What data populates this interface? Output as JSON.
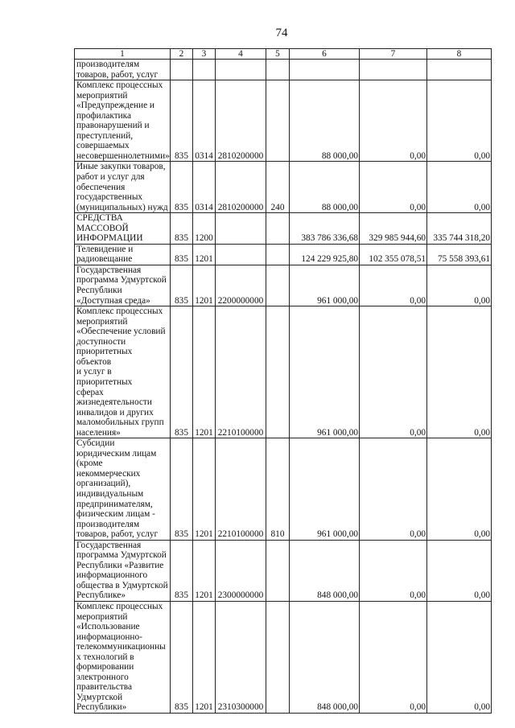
{
  "page_number": "74",
  "columns": [
    "1",
    "2",
    "3",
    "4",
    "5",
    "6",
    "7",
    "8"
  ],
  "rows": [
    {
      "name": "производителям\nтоваров, работ, услуг",
      "c2": "",
      "c3": "",
      "c4": "",
      "c5": "",
      "c6": "",
      "c7": "",
      "c8": ""
    },
    {
      "name": "Комплекс процессных\nмероприятий\n«Предупреждение и\nпрофилактика\nправонарушений и\nпреступлений,\nсовершаемых\nнесовершеннолетними»",
      "c2": "835",
      "c3": "0314",
      "c4": "2810200000",
      "c5": "",
      "c6": "88 000,00",
      "c7": "0,00",
      "c8": "0,00"
    },
    {
      "name": "Иные закупки товаров,\nработ и услуг для\nобеспечения\nгосударственных\n(муниципальных) нужд",
      "c2": "835",
      "c3": "0314",
      "c4": "2810200000",
      "c5": "240",
      "c6": "88 000,00",
      "c7": "0,00",
      "c8": "0,00"
    },
    {
      "name": "СРЕДСТВА\nМАССОВОЙ\nИНФОРМАЦИИ",
      "c2": "835",
      "c3": "1200",
      "c4": "",
      "c5": "",
      "c6": "383 786 336,68",
      "c7": "329 985 944,60",
      "c8": "335 744 318,20"
    },
    {
      "name": "Телевидение и\nрадиовещание",
      "c2": "835",
      "c3": "1201",
      "c4": "",
      "c5": "",
      "c6": "124 229 925,80",
      "c7": "102 355 078,51",
      "c8": "75 558 393,61"
    },
    {
      "name": "Государственная\nпрограмма Удмуртской\nРеспублики\n«Доступная среда»",
      "c2": "835",
      "c3": "1201",
      "c4": "2200000000",
      "c5": "",
      "c6": "961 000,00",
      "c7": "0,00",
      "c8": "0,00"
    },
    {
      "name": "Комплекс процессных\nмероприятий\n«Обеспечение условий\nдоступности\nприоритетных объектов\nи услуг в приоритетных\nсферах\nжизнедеятельности\nинвалидов и других\nмаломобильных групп\nнаселения»",
      "c2": "835",
      "c3": "1201",
      "c4": "2210100000",
      "c5": "",
      "c6": "961 000,00",
      "c7": "0,00",
      "c8": "0,00"
    },
    {
      "name": "Субсидии\nюридическим лицам\n(кроме некоммерческих\nорганизаций),\nиндивидуальным\nпредпринимателям,\nфизическим лицам -\nпроизводителям\nтоваров, работ, услуг",
      "c2": "835",
      "c3": "1201",
      "c4": "2210100000",
      "c5": "810",
      "c6": "961 000,00",
      "c7": "0,00",
      "c8": "0,00"
    },
    {
      "name": "Государственная\nпрограмма Удмуртской\nРеспублики «Развитие\nинформационного\nобщества в Удмуртской\nРеспублике»",
      "c2": "835",
      "c3": "1201",
      "c4": "2300000000",
      "c5": "",
      "c6": "848 000,00",
      "c7": "0,00",
      "c8": "0,00"
    },
    {
      "name": "Комплекс процессных\nмероприятий\n«Использование\nинформационно-\nтелекоммуникационны\nх технологий в\nформировании\nэлектронного\nправительства\nУдмуртской\nРеспублики»",
      "c2": "835",
      "c3": "1201",
      "c4": "2310300000",
      "c5": "",
      "c6": "848 000,00",
      "c7": "0,00",
      "c8": "0,00"
    }
  ]
}
